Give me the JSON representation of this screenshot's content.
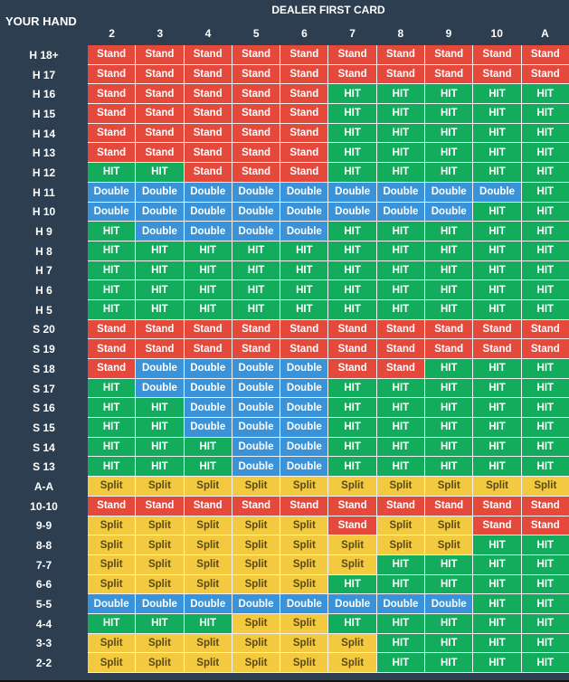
{
  "your_hand_label": "YOUR HAND",
  "dealer_label": "DEALER FIRST CARD",
  "dealer_cards": [
    "2",
    "3",
    "4",
    "5",
    "6",
    "7",
    "8",
    "9",
    "10",
    "A"
  ],
  "colors": {
    "Stand": "#e5493b",
    "HIT": "#12ac5c",
    "Double": "#3a93d8",
    "Split": "#f3c93f",
    "background": "#2d3e50"
  },
  "rows": [
    {
      "hand": "H 18+",
      "actions": [
        "Stand",
        "Stand",
        "Stand",
        "Stand",
        "Stand",
        "Stand",
        "Stand",
        "Stand",
        "Stand",
        "Stand"
      ]
    },
    {
      "hand": "H 17",
      "actions": [
        "Stand",
        "Stand",
        "Stand",
        "Stand",
        "Stand",
        "Stand",
        "Stand",
        "Stand",
        "Stand",
        "Stand"
      ]
    },
    {
      "hand": "H 16",
      "actions": [
        "Stand",
        "Stand",
        "Stand",
        "Stand",
        "Stand",
        "HIT",
        "HIT",
        "HIT",
        "HIT",
        "HIT"
      ]
    },
    {
      "hand": "H 15",
      "actions": [
        "Stand",
        "Stand",
        "Stand",
        "Stand",
        "Stand",
        "HIT",
        "HIT",
        "HIT",
        "HIT",
        "HIT"
      ]
    },
    {
      "hand": "H 14",
      "actions": [
        "Stand",
        "Stand",
        "Stand",
        "Stand",
        "Stand",
        "HIT",
        "HIT",
        "HIT",
        "HIT",
        "HIT"
      ]
    },
    {
      "hand": "H 13",
      "actions": [
        "Stand",
        "Stand",
        "Stand",
        "Stand",
        "Stand",
        "HIT",
        "HIT",
        "HIT",
        "HIT",
        "HIT"
      ]
    },
    {
      "hand": "H 12",
      "actions": [
        "HIT",
        "HIT",
        "Stand",
        "Stand",
        "Stand",
        "HIT",
        "HIT",
        "HIT",
        "HIT",
        "HIT"
      ]
    },
    {
      "hand": "H 11",
      "actions": [
        "Double",
        "Double",
        "Double",
        "Double",
        "Double",
        "Double",
        "Double",
        "Double",
        "Double",
        "HIT"
      ]
    },
    {
      "hand": "H 10",
      "actions": [
        "Double",
        "Double",
        "Double",
        "Double",
        "Double",
        "Double",
        "Double",
        "Double",
        "HIT",
        "HIT"
      ]
    },
    {
      "hand": "H 9",
      "actions": [
        "HIT",
        "Double",
        "Double",
        "Double",
        "Double",
        "HIT",
        "HIT",
        "HIT",
        "HIT",
        "HIT"
      ]
    },
    {
      "hand": "H 8",
      "actions": [
        "HIT",
        "HIT",
        "HIT",
        "HIT",
        "HIT",
        "HIT",
        "HIT",
        "HIT",
        "HIT",
        "HIT"
      ]
    },
    {
      "hand": "H 7",
      "actions": [
        "HIT",
        "HIT",
        "HIT",
        "HIT",
        "HIT",
        "HIT",
        "HIT",
        "HIT",
        "HIT",
        "HIT"
      ]
    },
    {
      "hand": "H 6",
      "actions": [
        "HIT",
        "HIT",
        "HIT",
        "HIT",
        "HIT",
        "HIT",
        "HIT",
        "HIT",
        "HIT",
        "HIT"
      ]
    },
    {
      "hand": "H 5",
      "actions": [
        "HIT",
        "HIT",
        "HIT",
        "HIT",
        "HIT",
        "HIT",
        "HIT",
        "HIT",
        "HIT",
        "HIT"
      ]
    },
    {
      "hand": "S 20",
      "actions": [
        "Stand",
        "Stand",
        "Stand",
        "Stand",
        "Stand",
        "Stand",
        "Stand",
        "Stand",
        "Stand",
        "Stand"
      ]
    },
    {
      "hand": "S 19",
      "actions": [
        "Stand",
        "Stand",
        "Stand",
        "Stand",
        "Stand",
        "Stand",
        "Stand",
        "Stand",
        "Stand",
        "Stand"
      ]
    },
    {
      "hand": "S 18",
      "actions": [
        "Stand",
        "Double",
        "Double",
        "Double",
        "Double",
        "Stand",
        "Stand",
        "HIT",
        "HIT",
        "HIT"
      ]
    },
    {
      "hand": "S 17",
      "actions": [
        "HIT",
        "Double",
        "Double",
        "Double",
        "Double",
        "HIT",
        "HIT",
        "HIT",
        "HIT",
        "HIT"
      ]
    },
    {
      "hand": "S 16",
      "actions": [
        "HIT",
        "HIT",
        "Double",
        "Double",
        "Double",
        "HIT",
        "HIT",
        "HIT",
        "HIT",
        "HIT"
      ]
    },
    {
      "hand": "S 15",
      "actions": [
        "HIT",
        "HIT",
        "Double",
        "Double",
        "Double",
        "HIT",
        "HIT",
        "HIT",
        "HIT",
        "HIT"
      ]
    },
    {
      "hand": "S 14",
      "actions": [
        "HIT",
        "HIT",
        "HIT",
        "Double",
        "Double",
        "HIT",
        "HIT",
        "HIT",
        "HIT",
        "HIT"
      ]
    },
    {
      "hand": "S 13",
      "actions": [
        "HIT",
        "HIT",
        "HIT",
        "Double",
        "Double",
        "HIT",
        "HIT",
        "HIT",
        "HIT",
        "HIT"
      ]
    },
    {
      "hand": "A-A",
      "actions": [
        "Split",
        "Split",
        "Split",
        "Split",
        "Split",
        "Split",
        "Split",
        "Split",
        "Split",
        "Split"
      ]
    },
    {
      "hand": "10-10",
      "actions": [
        "Stand",
        "Stand",
        "Stand",
        "Stand",
        "Stand",
        "Stand",
        "Stand",
        "Stand",
        "Stand",
        "Stand"
      ]
    },
    {
      "hand": "9-9",
      "actions": [
        "Split",
        "Split",
        "Split",
        "Split",
        "Split",
        "Stand",
        "Split",
        "Split",
        "Stand",
        "Stand"
      ]
    },
    {
      "hand": "8-8",
      "actions": [
        "Split",
        "Split",
        "Split",
        "Split",
        "Split",
        "Split",
        "Split",
        "Split",
        "HIT",
        "HIT"
      ]
    },
    {
      "hand": "7-7",
      "actions": [
        "Split",
        "Split",
        "Split",
        "Split",
        "Split",
        "Split",
        "HIT",
        "HIT",
        "HIT",
        "HIT"
      ]
    },
    {
      "hand": "6-6",
      "actions": [
        "Split",
        "Split",
        "Split",
        "Split",
        "Split",
        "HIT",
        "HIT",
        "HIT",
        "HIT",
        "HIT"
      ]
    },
    {
      "hand": "5-5",
      "actions": [
        "Double",
        "Double",
        "Double",
        "Double",
        "Double",
        "Double",
        "Double",
        "Double",
        "HIT",
        "HIT"
      ]
    },
    {
      "hand": "4-4",
      "actions": [
        "HIT",
        "HIT",
        "HIT",
        "Split",
        "Split",
        "HIT",
        "HIT",
        "HIT",
        "HIT",
        "HIT"
      ]
    },
    {
      "hand": "3-3",
      "actions": [
        "Split",
        "Split",
        "Split",
        "Split",
        "Split",
        "Split",
        "HIT",
        "HIT",
        "HIT",
        "HIT"
      ]
    },
    {
      "hand": "2-2",
      "actions": [
        "Split",
        "Split",
        "Split",
        "Split",
        "Split",
        "Split",
        "HIT",
        "HIT",
        "HIT",
        "HIT"
      ]
    }
  ]
}
